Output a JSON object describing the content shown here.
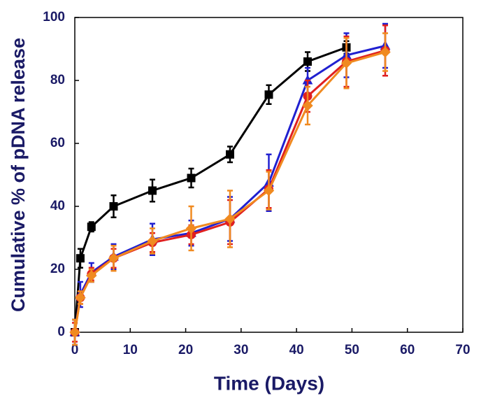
{
  "chart_data": {
    "type": "line",
    "x_label": "Time (Days)",
    "y_label": "Cumulative % of pDNA release",
    "xlim": [
      0,
      70
    ],
    "xticks": [
      0,
      10,
      20,
      30,
      40,
      50,
      60,
      70
    ],
    "ylim": [
      0,
      100
    ],
    "yticks": [
      0,
      20,
      40,
      60,
      80,
      100
    ],
    "series": [
      {
        "color": "#000000",
        "marker": "square",
        "x": [
          0,
          1,
          3,
          7,
          14,
          21,
          28,
          35,
          42,
          49
        ],
        "values": [
          0,
          23.5,
          33.5,
          40,
          45,
          49,
          56.5,
          75.5,
          86,
          90.5
        ],
        "errors": [
          4,
          3,
          1.5,
          3.5,
          3.5,
          3,
          2.5,
          3,
          3,
          2
        ]
      },
      {
        "color": "#2020d0",
        "marker": "triangle",
        "x": [
          0,
          1,
          3,
          7,
          14,
          21,
          28,
          35,
          42,
          49,
          56
        ],
        "values": [
          0,
          12,
          19,
          24,
          29.5,
          31.5,
          36,
          47.5,
          80,
          88,
          91
        ],
        "errors": [
          4,
          4,
          3,
          4,
          5,
          4,
          7,
          9,
          4,
          7,
          7
        ]
      },
      {
        "color": "#e02020",
        "marker": "circle",
        "x": [
          0,
          1,
          3,
          7,
          14,
          21,
          28,
          35,
          42,
          49,
          56
        ],
        "values": [
          0,
          11,
          18.5,
          23.5,
          28.5,
          31,
          35,
          45.5,
          75,
          86,
          89.5
        ],
        "errors": [
          3,
          2,
          2,
          3,
          3,
          3,
          7,
          6,
          5,
          8,
          8
        ]
      },
      {
        "color": "#f08a20",
        "marker": "diamond",
        "x": [
          0,
          1,
          3,
          7,
          14,
          21,
          28,
          35,
          42,
          49,
          56
        ],
        "values": [
          0,
          11,
          18,
          23.5,
          29,
          33,
          36,
          45,
          72,
          85.5,
          89
        ],
        "errors": [
          4,
          2,
          2,
          4,
          4,
          7,
          9,
          6,
          6,
          8,
          6
        ]
      }
    ]
  }
}
